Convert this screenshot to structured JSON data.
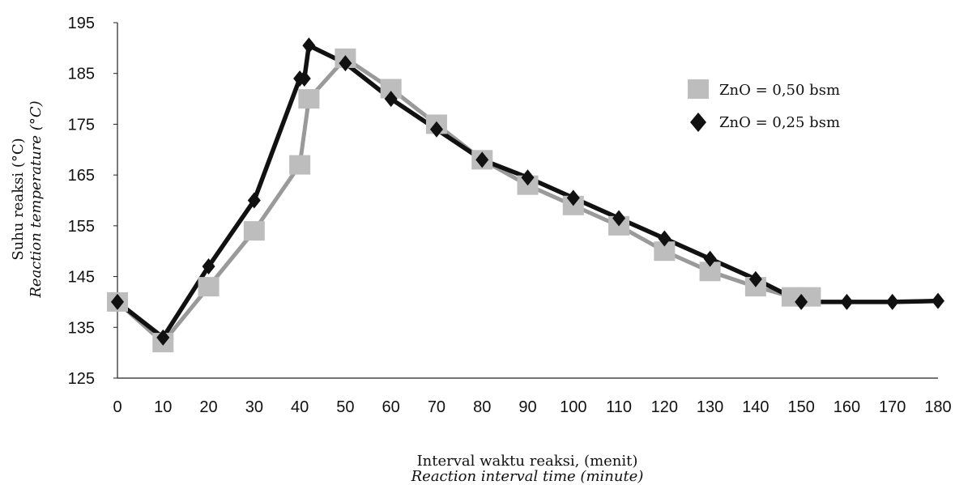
{
  "chart_data": {
    "type": "line",
    "xlabel": "Interval waktu reaksi, (menit)",
    "xlabel_translation": "Reaction interval time (minute)",
    "ylabel": "Suhu reaksi (°C)",
    "ylabel_translation": "Reaction temperature (°C)",
    "xticks": [
      0,
      10,
      20,
      30,
      40,
      50,
      60,
      70,
      80,
      90,
      100,
      110,
      120,
      130,
      140,
      150,
      160,
      170,
      180
    ],
    "yticks": [
      125,
      135,
      145,
      155,
      165,
      175,
      185,
      195
    ],
    "xlim": [
      0,
      180
    ],
    "ylim": [
      125,
      195
    ],
    "grid": false,
    "legend_position": "top-right",
    "series": [
      {
        "name": "ZnO = 0,50 bsm",
        "color": "#9a9a9a",
        "marker_color": "#bdbdbd",
        "marker": "square",
        "x": [
          0,
          10,
          20,
          30,
          40,
          42,
          50,
          60,
          70,
          80,
          90,
          100,
          110,
          120,
          130,
          140,
          148,
          152
        ],
        "y": [
          140,
          132,
          143,
          154,
          167,
          180,
          188,
          182,
          175,
          168,
          163,
          159,
          155,
          150,
          146,
          143,
          141,
          141
        ]
      },
      {
        "name": "ZnO = 0,25 bsm",
        "color": "#111111",
        "marker_color": "#111111",
        "marker": "diamond",
        "x": [
          0,
          10,
          20,
          30,
          40,
          41,
          42,
          50,
          60,
          70,
          80,
          90,
          100,
          110,
          120,
          130,
          140,
          150,
          160,
          170,
          180
        ],
        "y": [
          140,
          133,
          147,
          160,
          184,
          184,
          190.5,
          187,
          180,
          174,
          168,
          164.5,
          160.5,
          156.5,
          152.5,
          148.5,
          144.5,
          140,
          140,
          140,
          140.2
        ]
      }
    ]
  }
}
